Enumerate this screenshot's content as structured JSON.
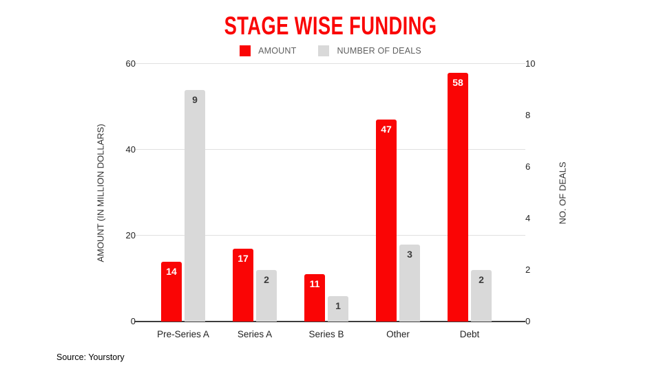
{
  "title": {
    "text": "STAGE WISE FUNDING",
    "color": "#fa0505"
  },
  "legend": [
    {
      "label": "AMOUNT",
      "color": "#fa0505"
    },
    {
      "label": "NUMBER OF DEALS",
      "color": "#d9d9d9"
    }
  ],
  "chart_data": {
    "type": "bar",
    "categories": [
      "Pre-Series A",
      "Series A",
      "Series B",
      "Other",
      "Debt"
    ],
    "series": [
      {
        "name": "AMOUNT",
        "axis": "left",
        "color": "#fa0505",
        "label_color": "#ffffff",
        "values": [
          14,
          17,
          11,
          47,
          58
        ]
      },
      {
        "name": "NUMBER OF DEALS",
        "axis": "right",
        "color": "#d9d9d9",
        "label_color": "#3c3c3c",
        "values": [
          9,
          2,
          1,
          3,
          2
        ]
      }
    ],
    "left_axis": {
      "title": "AMOUNT (IN MILLION DOLLARS)",
      "ticks": [
        0,
        20,
        40,
        60
      ],
      "max": 60
    },
    "right_axis": {
      "title": "NO. OF DEALS",
      "ticks": [
        0,
        2,
        4,
        6,
        8,
        10
      ],
      "max": 10
    },
    "grid": true,
    "legend_position": "top"
  },
  "source": {
    "text": "Source: Yourstory"
  }
}
